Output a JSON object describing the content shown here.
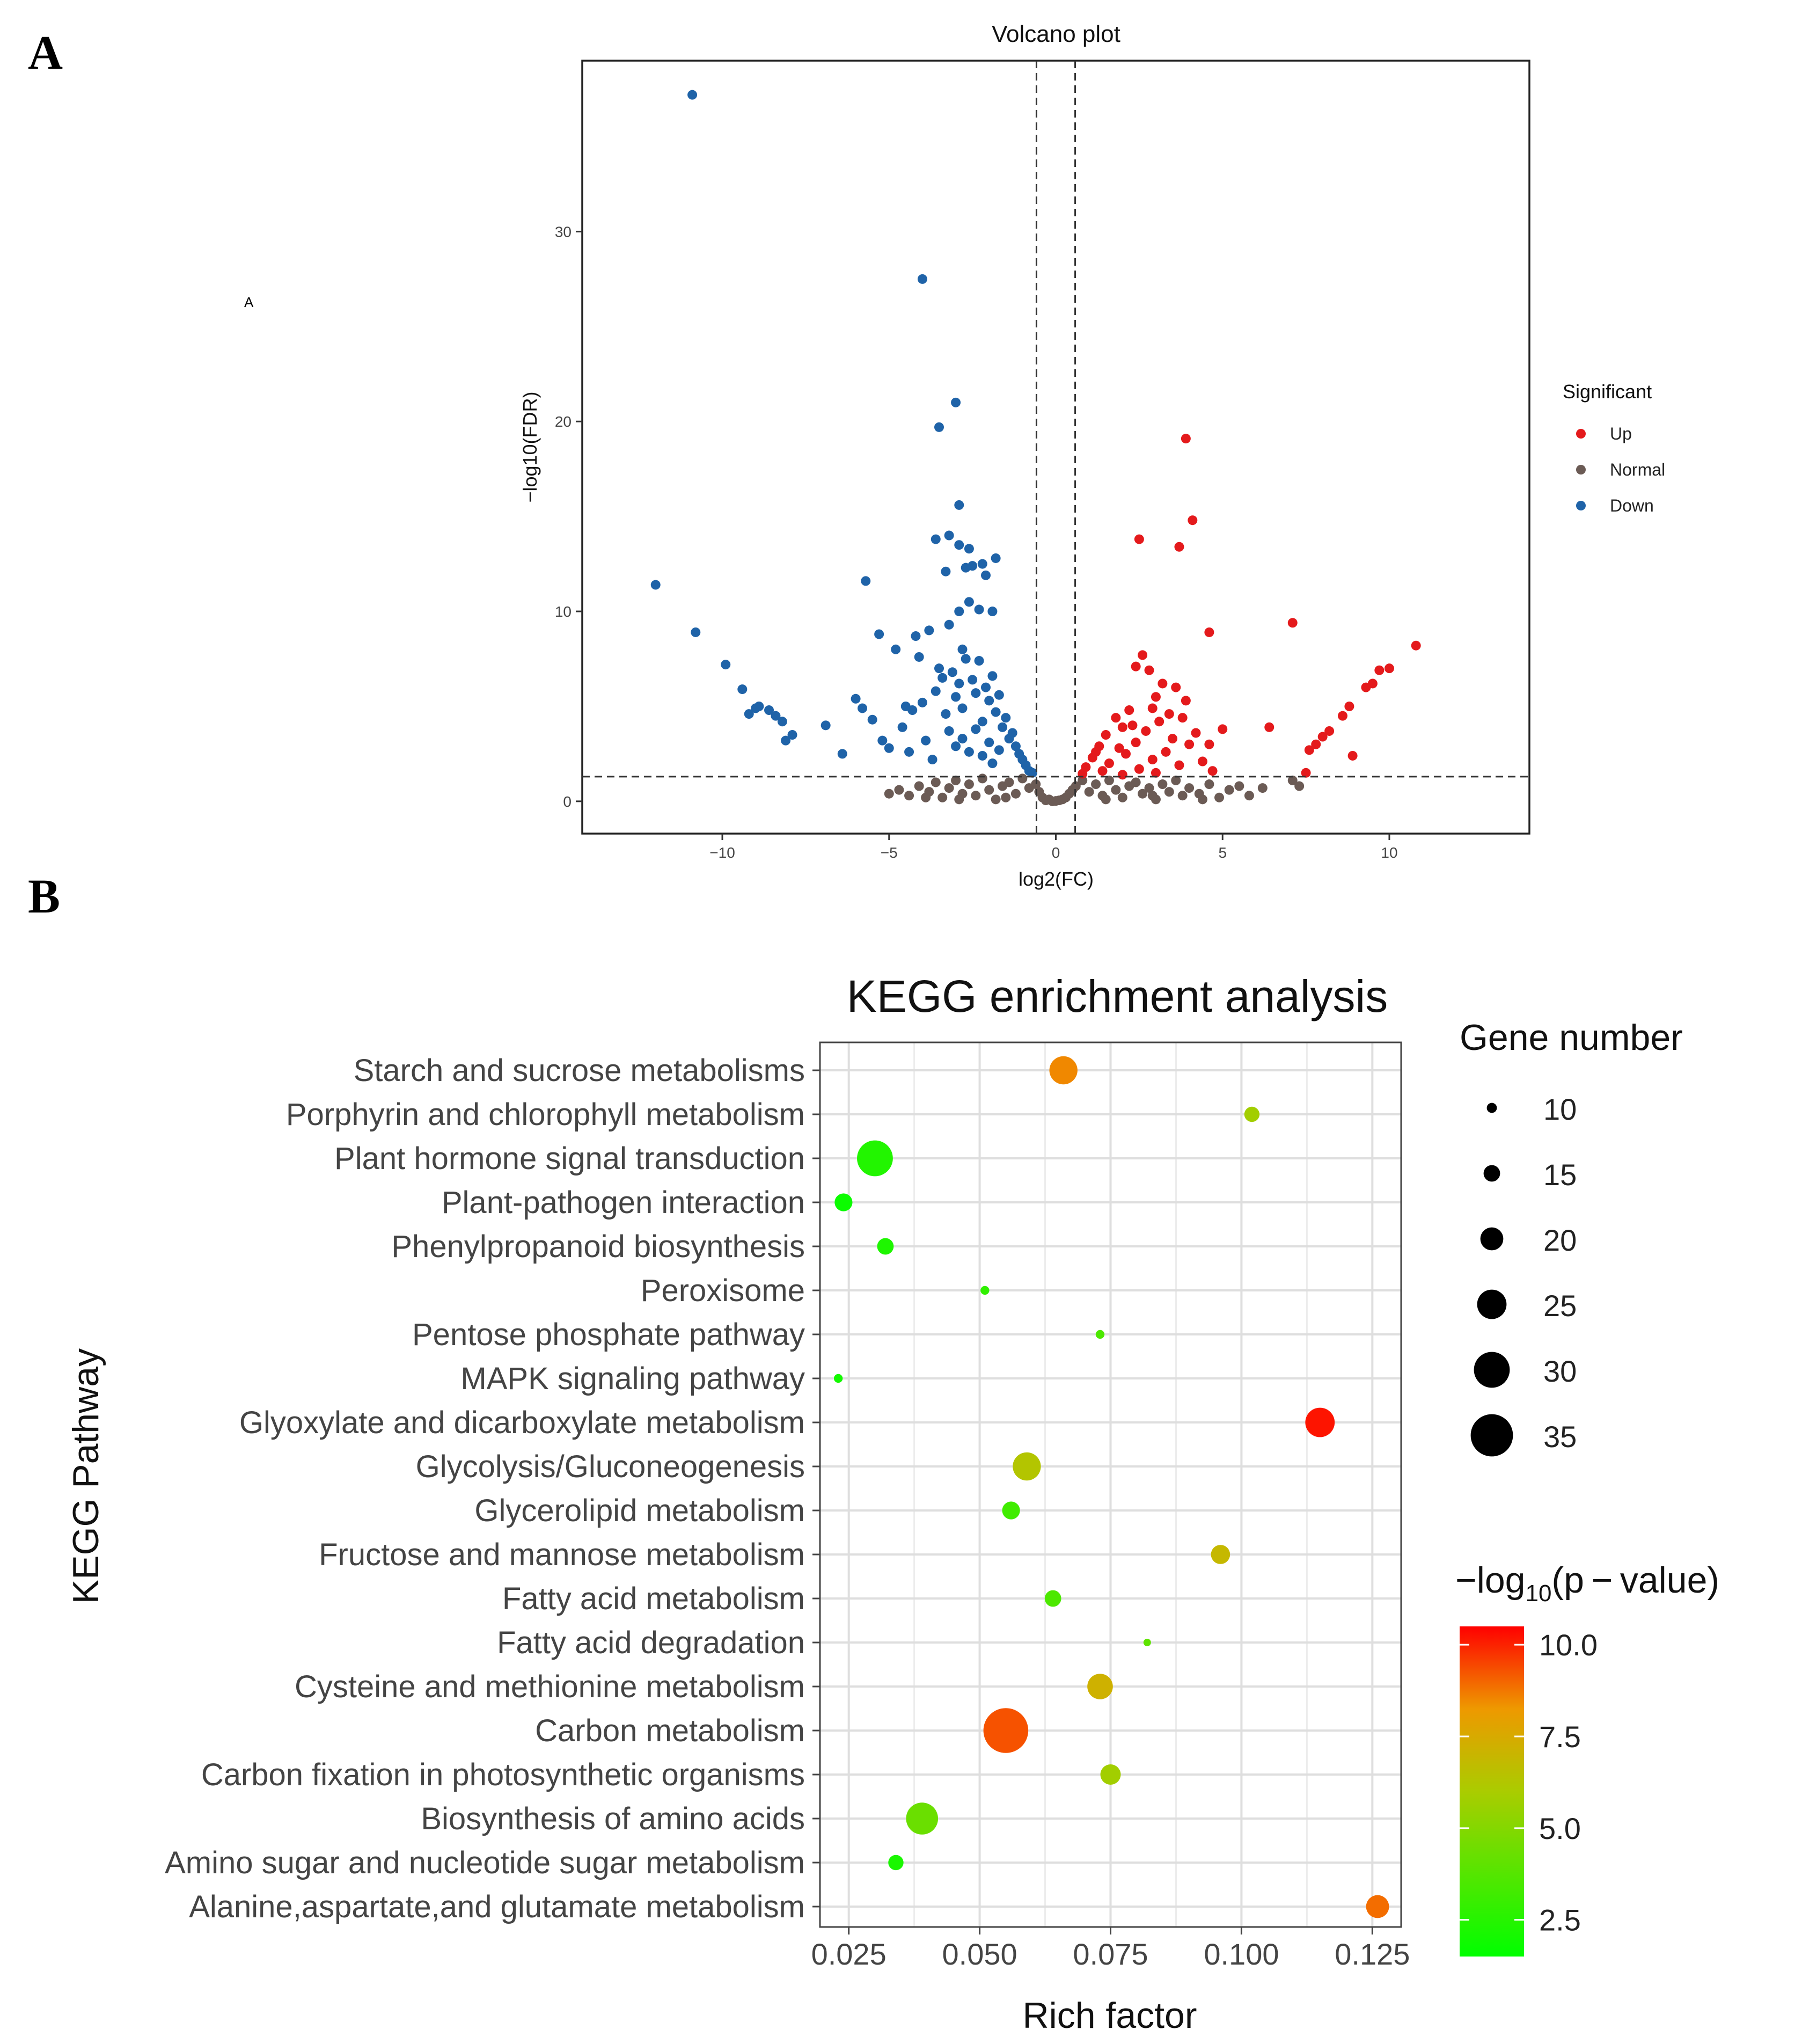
{
  "panels": {
    "a": {
      "letter": "A",
      "stray_text": "A"
    },
    "b": {
      "letter": "B"
    }
  },
  "chart_data": [
    {
      "id": "volcano",
      "type": "scatter",
      "title": "Volcano plot",
      "xlabel": "log2(FC)",
      "ylabel": "−log10(FDR)",
      "xlim": [
        -14.2,
        14.2
      ],
      "ylim": [
        -1.7,
        39
      ],
      "x_ticks": [
        -10,
        -5,
        0,
        5,
        10
      ],
      "x_tick_labels": [
        "−10",
        "−5",
        "0",
        "5",
        "10"
      ],
      "y_ticks": [
        0,
        10,
        20,
        30
      ],
      "y_tick_labels": [
        "0",
        "10",
        "20",
        "30"
      ],
      "fc_threshold": [
        -0.58,
        0.58
      ],
      "fdr_threshold": 1.3,
      "grid": false,
      "legend": {
        "title": "Significant",
        "placement": "right",
        "entries": [
          {
            "label": "Up",
            "color": "#e41a1c"
          },
          {
            "label": "Normal",
            "color": "#6b5b55"
          },
          {
            "label": "Down",
            "color": "#1f63a8"
          }
        ]
      },
      "series": [
        {
          "name": "Down",
          "color": "#1f63a8",
          "points": [
            [
              -10.9,
              37.2
            ],
            [
              -4,
              27.5
            ],
            [
              -3.5,
              19.7
            ],
            [
              -3,
              21.0
            ],
            [
              -2.9,
              15.6
            ],
            [
              -3.6,
              13.8
            ],
            [
              -3.2,
              14.0
            ],
            [
              -2.9,
              13.5
            ],
            [
              -2.6,
              13.3
            ],
            [
              -2.5,
              12.4
            ],
            [
              -2.2,
              12.5
            ],
            [
              -1.8,
              12.8
            ],
            [
              -2.7,
              12.3
            ],
            [
              -3.3,
              12.1
            ],
            [
              -2.1,
              11.9
            ],
            [
              -12,
              11.4
            ],
            [
              -5.7,
              11.6
            ],
            [
              -2.6,
              10.5
            ],
            [
              -2.3,
              10.1
            ],
            [
              -1.9,
              10.0
            ],
            [
              -2.9,
              10.0
            ],
            [
              -10.8,
              8.9
            ],
            [
              -5.3,
              8.8
            ],
            [
              -4.2,
              8.7
            ],
            [
              -3.8,
              9.0
            ],
            [
              -3.2,
              9.3
            ],
            [
              -2.8,
              8.0
            ],
            [
              -9.9,
              7.2
            ],
            [
              -4.8,
              8.0
            ],
            [
              -4.1,
              7.6
            ],
            [
              -3.5,
              7.0
            ],
            [
              -9.4,
              5.9
            ],
            [
              -8.9,
              5.0
            ],
            [
              -8.6,
              4.8
            ],
            [
              -8.4,
              4.5
            ],
            [
              -8.2,
              4.2
            ],
            [
              -7.9,
              3.5
            ],
            [
              -9.0,
              4.9
            ],
            [
              -9.2,
              4.6
            ],
            [
              -8.1,
              3.2
            ],
            [
              -6.0,
              5.4
            ],
            [
              -5.8,
              4.9
            ],
            [
              -5.5,
              4.3
            ],
            [
              -4.5,
              5.0
            ],
            [
              -4.3,
              4.8
            ],
            [
              -4.0,
              5.2
            ],
            [
              -5.2,
              3.2
            ],
            [
              -6.4,
              2.5
            ],
            [
              -6.9,
              4.0
            ],
            [
              -5.0,
              2.8
            ],
            [
              -4.6,
              3.9
            ],
            [
              -4.4,
              2.6
            ],
            [
              -3.9,
              3.2
            ],
            [
              -3.7,
              2.2
            ],
            [
              -3.6,
              5.8
            ],
            [
              -3.4,
              6.5
            ],
            [
              -3.3,
              4.6
            ],
            [
              -3.1,
              6.8
            ],
            [
              -3.0,
              5.5
            ],
            [
              -2.9,
              6.2
            ],
            [
              -2.8,
              4.9
            ],
            [
              -2.7,
              7.5
            ],
            [
              -2.5,
              6.4
            ],
            [
              -2.4,
              5.7
            ],
            [
              -2.3,
              7.4
            ],
            [
              -2.2,
              4.2
            ],
            [
              -2.1,
              6.0
            ],
            [
              -2.0,
              5.3
            ],
            [
              -1.9,
              6.6
            ],
            [
              -1.8,
              4.7
            ],
            [
              -1.7,
              5.6
            ],
            [
              -1.6,
              3.9
            ],
            [
              -1.5,
              4.4
            ],
            [
              -1.4,
              3.3
            ],
            [
              -1.3,
              3.6
            ],
            [
              -1.2,
              2.9
            ],
            [
              -1.1,
              2.5
            ],
            [
              -1.0,
              2.2
            ],
            [
              -0.9,
              1.9
            ],
            [
              -0.8,
              1.6
            ],
            [
              -0.7,
              1.5
            ],
            [
              -3.2,
              3.7
            ],
            [
              -3.0,
              2.9
            ],
            [
              -2.8,
              3.3
            ],
            [
              -2.6,
              2.6
            ],
            [
              -2.4,
              3.8
            ],
            [
              -2.2,
              2.4
            ],
            [
              -2.0,
              3.1
            ],
            [
              -1.9,
              2.0
            ],
            [
              -1.7,
              2.7
            ]
          ]
        },
        {
          "name": "Up",
          "color": "#e41a1c",
          "points": [
            [
              3.9,
              19.1
            ],
            [
              4.1,
              14.8
            ],
            [
              2.5,
              13.8
            ],
            [
              3.7,
              13.4
            ],
            [
              4.6,
              8.9
            ],
            [
              7.1,
              9.4
            ],
            [
              10.8,
              8.2
            ],
            [
              10.0,
              7.0
            ],
            [
              9.7,
              6.9
            ],
            [
              9.3,
              6.0
            ],
            [
              9.5,
              6.2
            ],
            [
              8.8,
              5.0
            ],
            [
              8.6,
              4.5
            ],
            [
              8.2,
              3.7
            ],
            [
              8.0,
              3.4
            ],
            [
              7.8,
              3.0
            ],
            [
              7.6,
              2.7
            ],
            [
              8.9,
              2.4
            ],
            [
              7.5,
              1.5
            ],
            [
              6.4,
              3.9
            ],
            [
              5.0,
              3.8
            ],
            [
              4.6,
              3.0
            ],
            [
              2.6,
              7.7
            ],
            [
              2.4,
              7.1
            ],
            [
              2.8,
              6.9
            ],
            [
              3.2,
              6.2
            ],
            [
              3.0,
              5.5
            ],
            [
              3.6,
              6.0
            ],
            [
              3.9,
              5.3
            ],
            [
              2.9,
              4.9
            ],
            [
              2.2,
              4.8
            ],
            [
              3.4,
              4.6
            ],
            [
              1.8,
              4.4
            ],
            [
              3.1,
              4.2
            ],
            [
              2.0,
              3.9
            ],
            [
              4.2,
              3.6
            ],
            [
              2.7,
              3.7
            ],
            [
              1.5,
              3.5
            ],
            [
              3.5,
              3.3
            ],
            [
              4.0,
              3.0
            ],
            [
              2.4,
              3.1
            ],
            [
              1.3,
              2.9
            ],
            [
              1.9,
              2.8
            ],
            [
              3.3,
              2.6
            ],
            [
              2.1,
              2.5
            ],
            [
              1.1,
              2.3
            ],
            [
              2.9,
              2.2
            ],
            [
              4.4,
              2.1
            ],
            [
              1.6,
              2.0
            ],
            [
              3.7,
              1.9
            ],
            [
              0.9,
              1.8
            ],
            [
              2.5,
              1.7
            ],
            [
              1.4,
              1.6
            ],
            [
              3.0,
              1.5
            ],
            [
              0.8,
              1.45
            ],
            [
              2.0,
              1.4
            ],
            [
              4.7,
              1.6
            ],
            [
              1.2,
              2.6
            ],
            [
              2.3,
              4.0
            ],
            [
              3.8,
              4.4
            ]
          ]
        },
        {
          "name": "Normal",
          "color": "#6b5b55",
          "points": [
            [
              -5.0,
              0.4
            ],
            [
              -4.7,
              0.6
            ],
            [
              -4.4,
              0.3
            ],
            [
              -4.1,
              0.8
            ],
            [
              -3.8,
              0.5
            ],
            [
              -3.6,
              1.0
            ],
            [
              -3.4,
              0.2
            ],
            [
              -3.2,
              0.7
            ],
            [
              -3.0,
              1.1
            ],
            [
              -2.8,
              0.4
            ],
            [
              -2.6,
              0.9
            ],
            [
              -2.4,
              0.3
            ],
            [
              -2.2,
              1.2
            ],
            [
              -2.0,
              0.6
            ],
            [
              -1.8,
              0.1
            ],
            [
              -1.6,
              0.8
            ],
            [
              -1.4,
              1.0
            ],
            [
              -1.2,
              0.4
            ],
            [
              -1.0,
              1.2
            ],
            [
              -0.8,
              0.7
            ],
            [
              -0.6,
              0.9
            ],
            [
              -0.5,
              0.5
            ],
            [
              -0.4,
              0.2
            ],
            [
              -0.3,
              0.05
            ],
            [
              -0.2,
              0.1
            ],
            [
              -0.1,
              0.0
            ],
            [
              0.0,
              0.02
            ],
            [
              0.1,
              0.05
            ],
            [
              0.2,
              0.1
            ],
            [
              0.3,
              0.2
            ],
            [
              0.4,
              0.4
            ],
            [
              0.5,
              0.6
            ],
            [
              0.6,
              0.8
            ],
            [
              0.8,
              1.1
            ],
            [
              1.0,
              0.5
            ],
            [
              1.2,
              0.9
            ],
            [
              1.4,
              0.3
            ],
            [
              1.6,
              1.1
            ],
            [
              1.8,
              0.6
            ],
            [
              2.0,
              0.2
            ],
            [
              2.2,
              0.8
            ],
            [
              2.4,
              1.0
            ],
            [
              2.6,
              0.4
            ],
            [
              2.8,
              0.7
            ],
            [
              3.0,
              0.1
            ],
            [
              3.2,
              0.9
            ],
            [
              3.4,
              0.5
            ],
            [
              3.6,
              1.1
            ],
            [
              3.8,
              0.3
            ],
            [
              4.0,
              0.7
            ],
            [
              4.3,
              0.4
            ],
            [
              4.6,
              0.9
            ],
            [
              4.9,
              0.2
            ],
            [
              5.2,
              0.6
            ],
            [
              5.5,
              0.8
            ],
            [
              5.8,
              0.3
            ],
            [
              6.2,
              0.7
            ],
            [
              7.1,
              1.1
            ],
            [
              7.3,
              0.8
            ],
            [
              -2.9,
              0.1
            ],
            [
              -1.5,
              0.2
            ],
            [
              1.5,
              0.1
            ],
            [
              2.9,
              0.3
            ],
            [
              -3.9,
              0.2
            ],
            [
              4.4,
              0.1
            ]
          ]
        }
      ]
    },
    {
      "id": "kegg",
      "type": "scatter",
      "title": "KEGG enrichment analysis",
      "xlabel": "Rich factor",
      "ylabel": "KEGG Pathway",
      "xlim": [
        0.0195,
        0.1305
      ],
      "x_ticks": [
        0.025,
        0.05,
        0.075,
        0.1,
        0.125
      ],
      "x_tick_labels": [
        "0.025",
        "0.050",
        "0.075",
        "0.100",
        "0.125"
      ],
      "grid": true,
      "categories": [
        "Starch and sucrose metabolisms",
        "Porphyrin and chlorophyll metabolism",
        "Plant hormone signal transduction",
        "Plant-pathogen interaction",
        "Phenylpropanoid biosynthesis",
        "Peroxisome",
        "Pentose phosphate pathway",
        "MAPK signaling pathway",
        "Glyoxylate and dicarboxylate metabolism",
        "Glycolysis/Gluconeogenesis",
        "Glycerolipid metabolism",
        "Fructose and mannose metabolism",
        "Fatty acid metabolism",
        "Fatty acid degradation",
        "Cysteine and methionine metabolism",
        "Carbon metabolism",
        "Carbon fixation in photosynthetic organisms",
        "Biosynthesis of amino acids",
        "Amino sugar and nucleotide sugar metabolism",
        "Alanine,aspartate,and glutamate metabolism"
      ],
      "rich_factor": [
        0.066,
        0.102,
        0.03,
        0.024,
        0.032,
        0.051,
        0.073,
        0.023,
        0.115,
        0.059,
        0.056,
        0.096,
        0.064,
        0.082,
        0.073,
        0.055,
        0.075,
        0.039,
        0.034,
        0.126
      ],
      "gene_number": [
        24,
        14,
        30,
        16,
        15,
        9,
        9,
        9,
        25,
        24,
        16,
        17,
        15,
        8,
        22,
        37,
        18,
        27,
        14,
        20
      ],
      "neg_log10_p": [
        8.5,
        5.8,
        2.4,
        1.8,
        2.3,
        2.8,
        3.5,
        2.0,
        10.2,
        6.3,
        3.2,
        6.9,
        3.5,
        4.0,
        7.2,
        9.3,
        5.8,
        4.3,
        2.2,
        8.9
      ],
      "size_legend": {
        "title": "Gene number",
        "placement": "right",
        "values": [
          10,
          15,
          20,
          25,
          30,
          35
        ],
        "labels": [
          "10",
          "15",
          "20",
          "25",
          "30",
          "35"
        ]
      },
      "color_legend": {
        "title_prefix": "−log",
        "title_sub": "10",
        "title_suffix": "(p − value)",
        "placement": "right",
        "range": [
          1.5,
          10.5
        ],
        "ticks": [
          2.5,
          5.0,
          7.5,
          10.0
        ],
        "tick_labels": [
          "2.5",
          "5.0",
          "7.5",
          "10.0"
        ],
        "colors": [
          "#00ff00",
          "#ff0000"
        ]
      }
    }
  ]
}
